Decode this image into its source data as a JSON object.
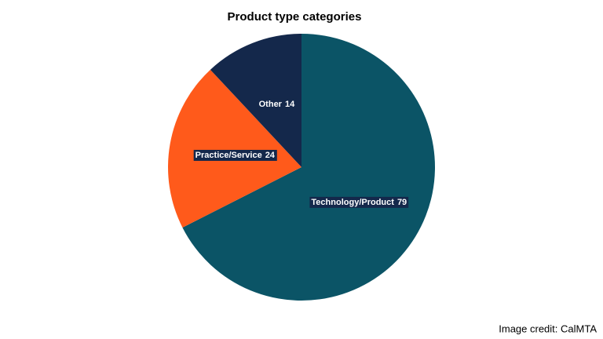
{
  "chart_data": {
    "type": "pie",
    "title": "Product type categories",
    "categories": [
      "Technology/Product",
      "Practice/Service",
      "Other"
    ],
    "values": [
      79,
      24,
      14
    ],
    "colors": [
      "#0b5466",
      "#ff5a1b",
      "#14284b"
    ]
  },
  "credit": "Image credit: CalMTA"
}
